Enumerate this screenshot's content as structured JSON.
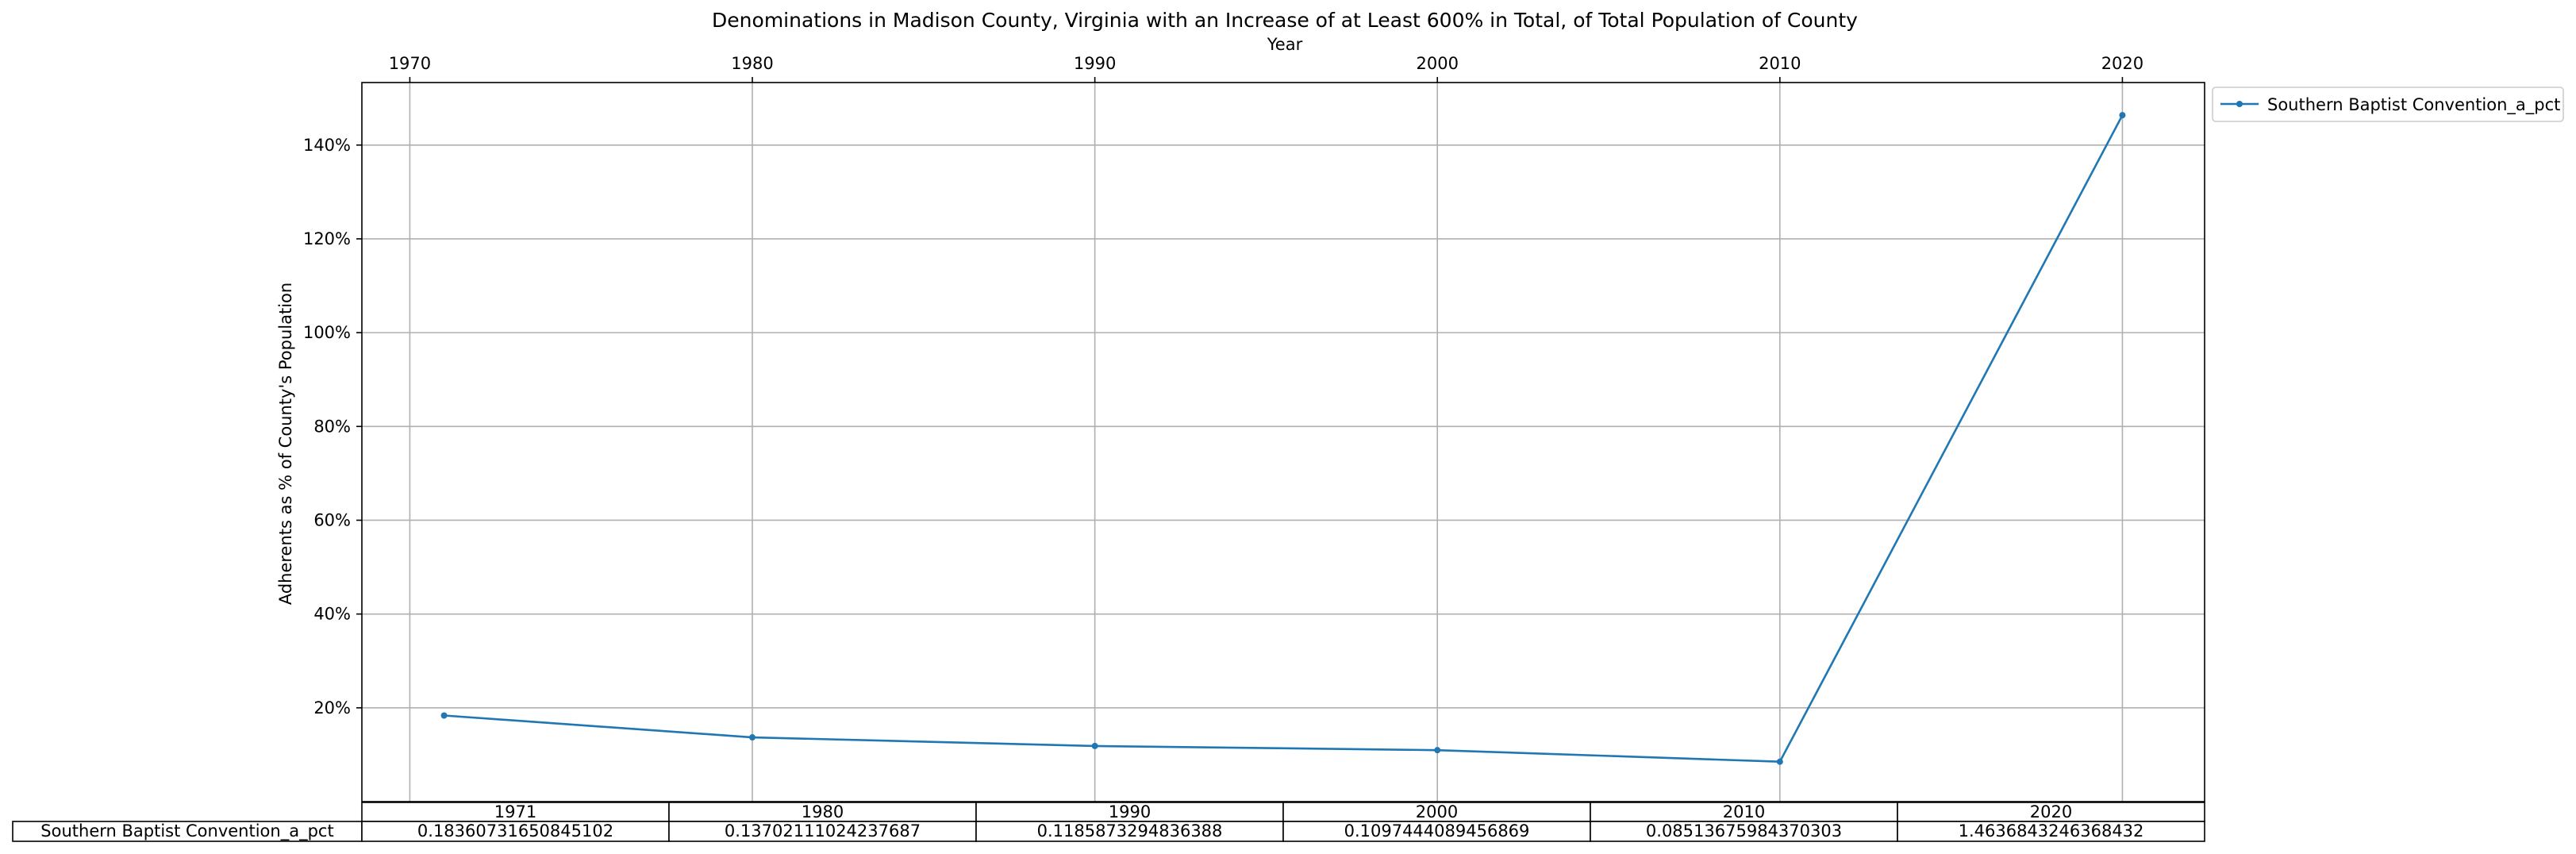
{
  "chart_data": {
    "type": "line",
    "title": "Denominations in Madison County, Virginia with an Increase of at Least 600% in Total, of Total Population of County",
    "xlabel": "Year",
    "ylabel": "Adherents as % of County's Population",
    "x_ticks": [
      "1970",
      "1980",
      "1990",
      "2000",
      "2010",
      "2020"
    ],
    "y_ticks": [
      "20%",
      "40%",
      "60%",
      "80%",
      "100%",
      "120%",
      "140%"
    ],
    "xlim": [
      1968.6,
      2022.4
    ],
    "ylim": [
      0.0,
      1.5333
    ],
    "grid": true,
    "legend_position": "outside-top-right",
    "series": [
      {
        "name": "Southern Baptist Convention_a_pct",
        "color": "#1f77b4",
        "x": [
          1971,
          1980,
          1990,
          2000,
          2010,
          2020
        ],
        "values": [
          0.18360731650845102,
          0.13702111024237687,
          0.1185873294836388,
          0.1097444089456869,
          0.08513675984370303,
          1.4636843246368432
        ]
      }
    ],
    "table": {
      "columns": [
        "1971",
        "1980",
        "1990",
        "2000",
        "2010",
        "2020"
      ],
      "row_label": "Southern Baptist Convention_a_pct",
      "cells": [
        "0.18360731650845102",
        "0.13702111024237687",
        "0.1185873294836388",
        "0.1097444089456869",
        "0.08513675984370303",
        "1.4636843246368432"
      ]
    }
  }
}
